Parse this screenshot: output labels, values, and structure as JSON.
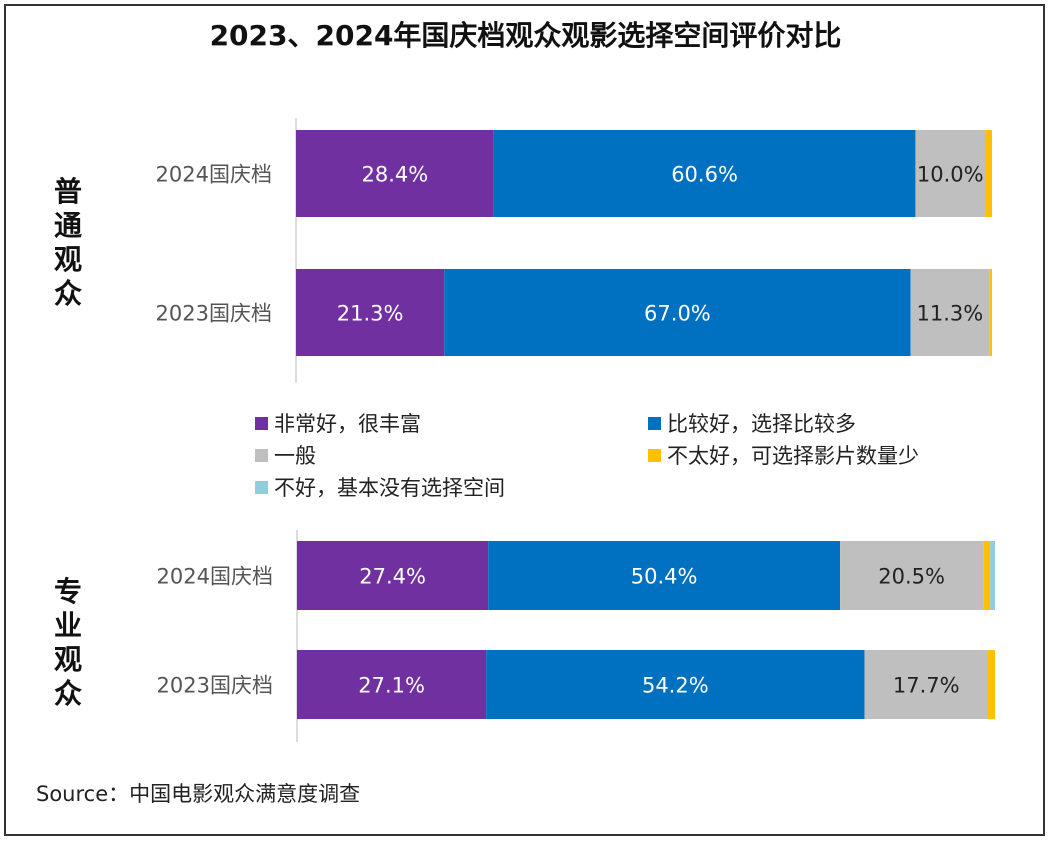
{
  "title": "2023、2024年国庆档观众观影选择空间评价对比",
  "source": "Source：中国电影观众满意度调查",
  "legend": [
    {
      "label": "非常好，很丰富",
      "color": "#7030A0"
    },
    {
      "label": "比较好，选择比较多",
      "color": "#0070C0"
    },
    {
      "label": "一般",
      "color": "#BFBFBF"
    },
    {
      "label": "不太好，可选择影片数量少",
      "color": "#FFC000"
    },
    {
      "label": "不好，基本没有选择空间",
      "color": "#92CDDC"
    }
  ],
  "chart_data": {
    "type": "bar",
    "orientation": "horizontal",
    "stacked": "percent",
    "groups": [
      {
        "name": "普通观众",
        "rows": [
          {
            "category": "2024国庆档",
            "values": [
              28.4,
              60.6,
              10.0,
              1.0,
              0.0
            ]
          },
          {
            "category": "2023国庆档",
            "values": [
              21.3,
              67.0,
              11.3,
              0.4,
              0.0
            ]
          }
        ]
      },
      {
        "name": "专业观众",
        "rows": [
          {
            "category": "2024国庆档",
            "values": [
              27.4,
              50.4,
              20.5,
              1.0,
              0.7
            ]
          },
          {
            "category": "2023国庆档",
            "values": [
              27.1,
              54.2,
              17.7,
              1.0,
              0.0
            ]
          }
        ]
      }
    ],
    "series": [
      {
        "name": "非常好，很丰富",
        "color": "#7030A0",
        "label_color": "#ffffff"
      },
      {
        "name": "比较好，选择比较多",
        "color": "#0070C0",
        "label_color": "#ffffff"
      },
      {
        "name": "一般",
        "color": "#BFBFBF",
        "label_color": "#222222"
      },
      {
        "name": "不太好，可选择影片数量少",
        "color": "#FFC000",
        "label_color": "#222222"
      },
      {
        "name": "不好，基本没有选择空间",
        "color": "#92CDDC",
        "label_color": "#222222"
      }
    ],
    "data_labels": true,
    "label_threshold": 5,
    "xlim": [
      0,
      100
    ],
    "grid": false,
    "legend_position": "middle"
  }
}
